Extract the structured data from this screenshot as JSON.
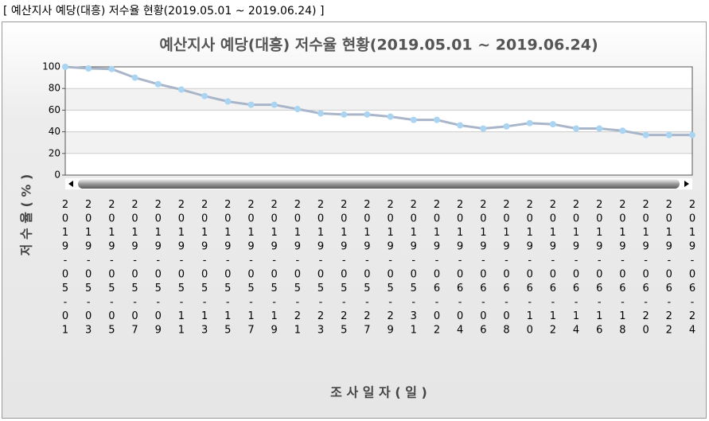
{
  "page_title": "[ 예산지사 예당(대흥) 저수율 현황(2019.05.01 ~ 2019.06.24) ]",
  "chart_data": {
    "type": "line",
    "title": "예산지사 예당(대흥) 저수율 현황(2019.05.01 ~ 2019.06.24)",
    "y_label": "저 수 율 ( % )",
    "x_label": "조 사 일 자 ( 일 )",
    "categories": [
      "2019-05-01",
      "2019-05-03",
      "2019-05-05",
      "2019-05-07",
      "2019-05-09",
      "2019-05-11",
      "2019-05-13",
      "2019-05-15",
      "2019-05-17",
      "2019-05-19",
      "2019-05-21",
      "2019-05-23",
      "2019-05-25",
      "2019-05-27",
      "2019-05-29",
      "2019-05-31",
      "2019-06-02",
      "2019-06-04",
      "2019-06-06",
      "2019-06-08",
      "2019-06-10",
      "2019-06-12",
      "2019-06-14",
      "2019-06-16",
      "2019-06-18",
      "2019-06-20",
      "2019-06-22",
      "2019-06-24"
    ],
    "values": [
      100,
      98.5,
      98,
      90,
      84,
      79,
      73,
      68,
      65,
      65,
      61,
      57,
      56,
      56,
      54,
      51,
      51,
      46,
      43,
      45,
      48,
      47,
      43,
      43,
      41,
      37,
      37,
      37
    ],
    "color": "#a9b6c9",
    "marker_color": "#a9d4f2",
    "ylim": [
      0,
      100
    ],
    "yticks": [
      0,
      20,
      40,
      60,
      80,
      100
    ],
    "grid": true
  }
}
